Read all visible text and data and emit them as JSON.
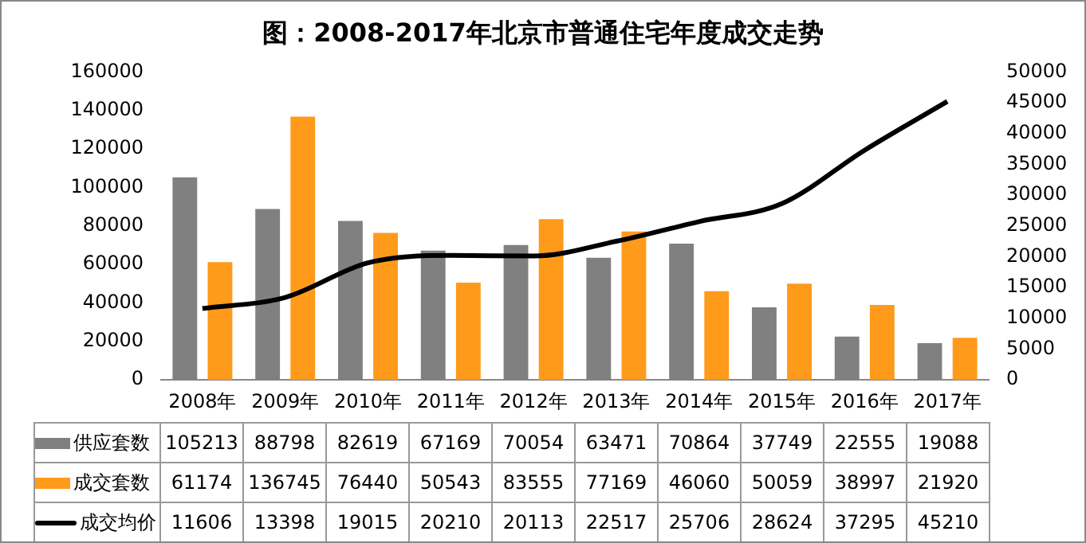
{
  "chart_data": {
    "type": "bar",
    "title": "图：2008-2017年北京市普通住宅年度成交走势",
    "categories": [
      "2008年",
      "2009年",
      "2010年",
      "2011年",
      "2012年",
      "2013年",
      "2014年",
      "2015年",
      "2016年",
      "2017年"
    ],
    "series": [
      {
        "name": "供应套数",
        "color": "#808080",
        "values": [
          105213,
          88798,
          82619,
          67169,
          70054,
          63471,
          70864,
          37749,
          22555,
          19088
        ]
      },
      {
        "name": "成交套数",
        "color": "#ff9a1a",
        "values": [
          61174,
          136745,
          76440,
          50543,
          83555,
          77169,
          46060,
          50059,
          38997,
          21920
        ]
      },
      {
        "name": "成交均价",
        "type": "line",
        "axis": "y2",
        "color": "#000000",
        "values": [
          11606,
          13398,
          19015,
          20210,
          20113,
          22517,
          25706,
          28624,
          37295,
          45210
        ]
      }
    ],
    "ylim": [
      0,
      160000
    ],
    "yticks": [
      0,
      20000,
      40000,
      60000,
      80000,
      100000,
      120000,
      140000,
      160000
    ],
    "y2lim": [
      0,
      50000
    ],
    "y2ticks": [
      0,
      5000,
      10000,
      15000,
      20000,
      25000,
      30000,
      35000,
      40000,
      45000,
      50000
    ],
    "data_labels": true,
    "legend": "bottom",
    "marker": "none",
    "grid": false
  }
}
